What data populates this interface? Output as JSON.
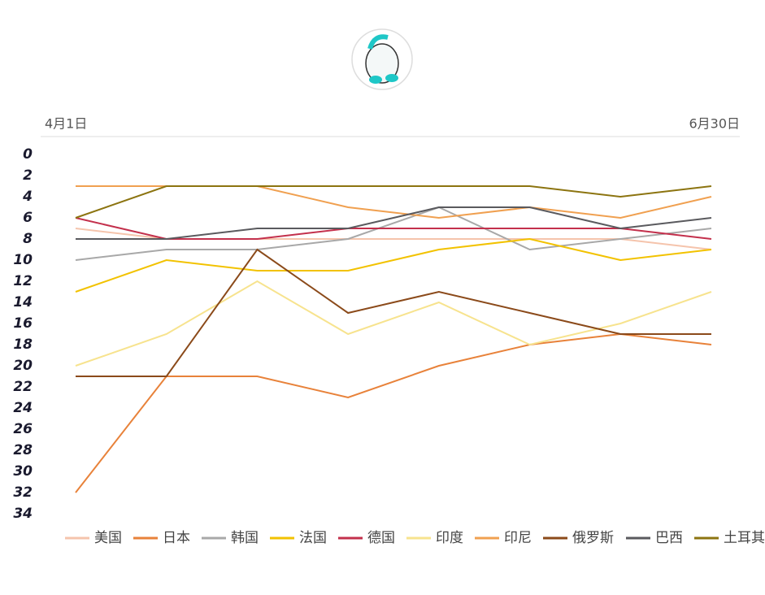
{
  "chart_data": {
    "type": "line",
    "categories": [
      "4月1日",
      null,
      null,
      null,
      null,
      null,
      null,
      "6月30日"
    ],
    "ylim": [
      0,
      34
    ],
    "y_inverted": true,
    "yticks": [
      0,
      2,
      4,
      6,
      8,
      10,
      12,
      14,
      16,
      18,
      20,
      22,
      24,
      26,
      28,
      30,
      32,
      34
    ],
    "legend": "bottom",
    "series": [
      {
        "name": "美国",
        "color": "#f5c4ac",
        "values": [
          7,
          8,
          8,
          8,
          8,
          8,
          8,
          9
        ]
      },
      {
        "name": "日本",
        "color": "#e8823a",
        "values": [
          32,
          21,
          21,
          23,
          20,
          18,
          17,
          18
        ]
      },
      {
        "name": "韩国",
        "color": "#a8a8a8",
        "values": [
          10,
          9,
          9,
          8,
          5,
          9,
          8,
          7
        ]
      },
      {
        "name": "法国",
        "color": "#f2c200",
        "values": [
          13,
          10,
          11,
          11,
          9,
          8,
          10,
          9
        ]
      },
      {
        "name": "德国",
        "color": "#c3304c",
        "values": [
          6,
          8,
          8,
          7,
          7,
          7,
          7,
          8
        ]
      },
      {
        "name": "印度",
        "color": "#f7e38e",
        "values": [
          20,
          17,
          12,
          17,
          14,
          18,
          16,
          13
        ]
      },
      {
        "name": "印尼",
        "color": "#f0a050",
        "values": [
          3,
          3,
          3,
          5,
          6,
          5,
          6,
          4
        ]
      },
      {
        "name": "俄罗斯",
        "color": "#8b4a1a",
        "values": [
          21,
          21,
          9,
          15,
          13,
          15,
          17,
          17
        ]
      },
      {
        "name": "巴西",
        "color": "#5a5a5e",
        "values": [
          8,
          8,
          7,
          7,
          5,
          5,
          7,
          6
        ]
      },
      {
        "name": "土耳其",
        "color": "#8c7410",
        "values": [
          6,
          3,
          3,
          3,
          3,
          3,
          4,
          3
        ]
      }
    ]
  }
}
